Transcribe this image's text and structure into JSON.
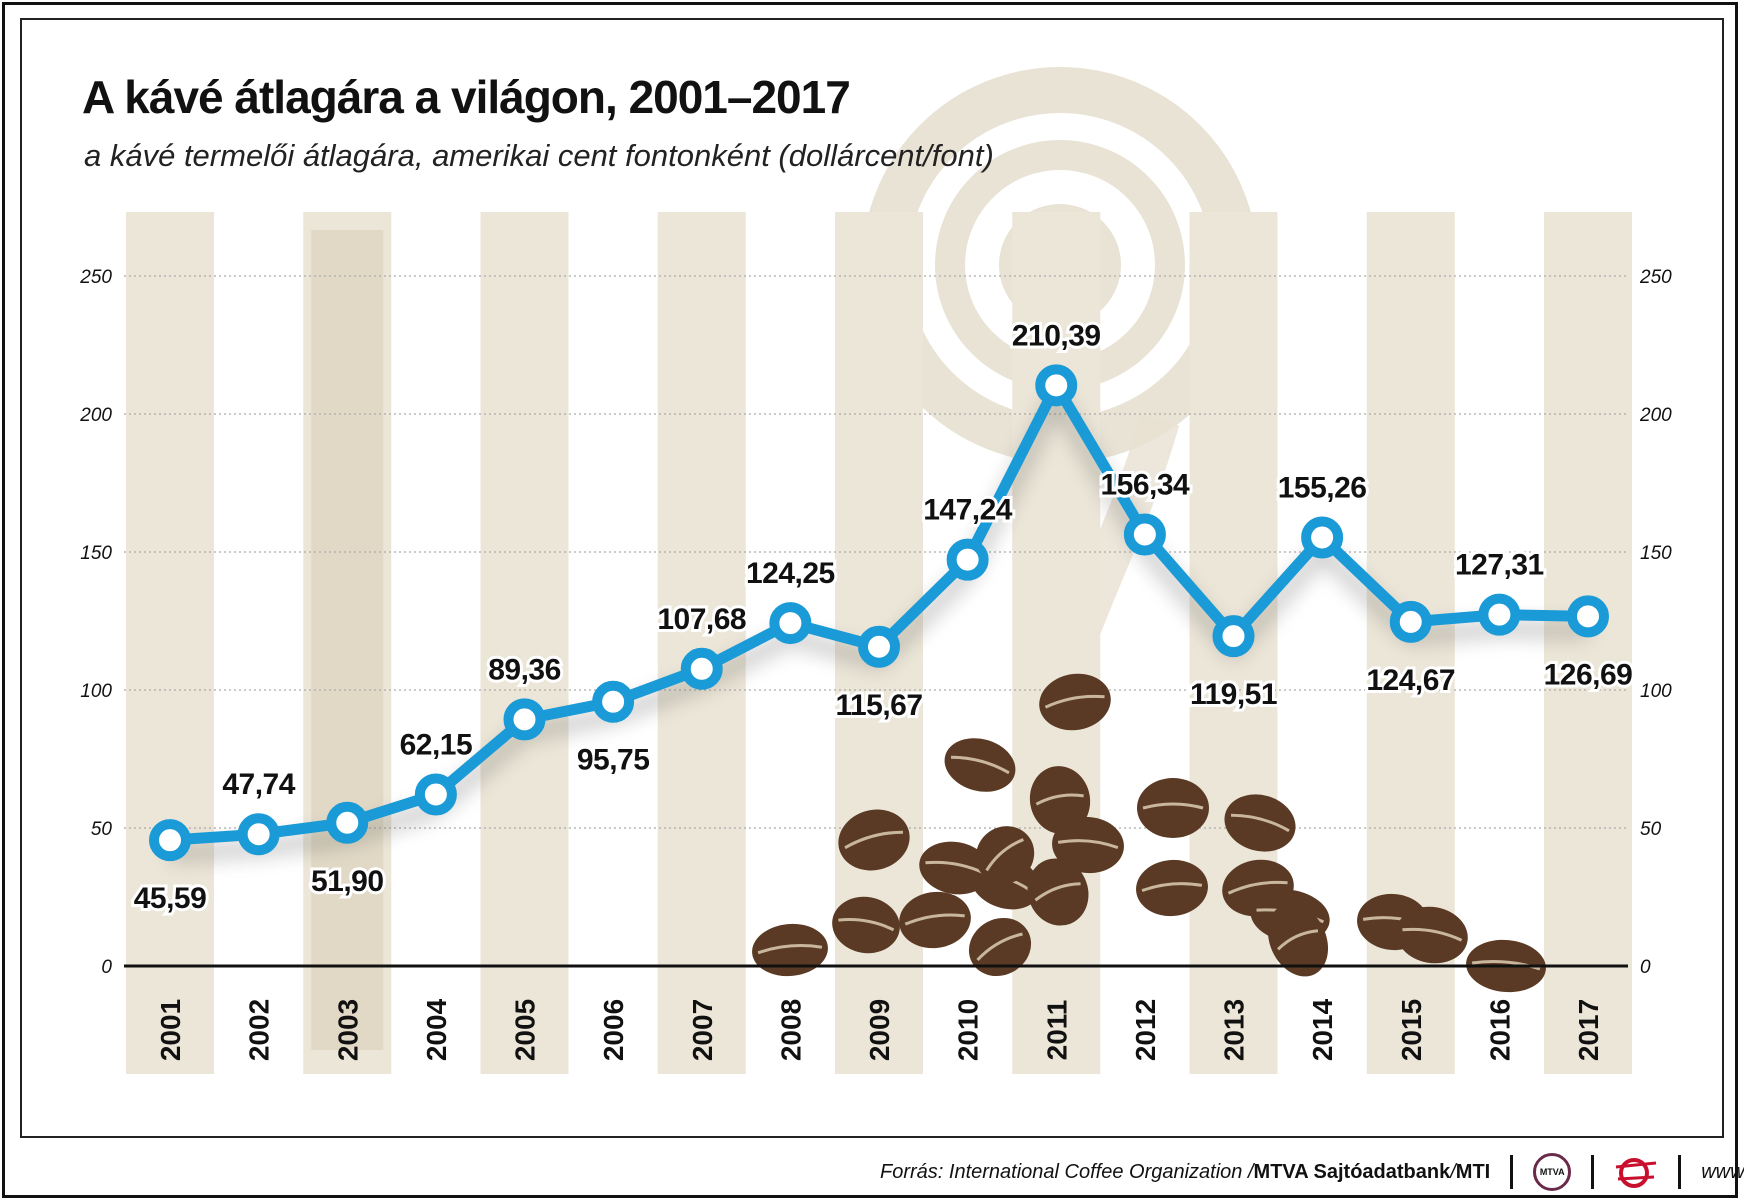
{
  "title": "A kávé átlagára a világon, 2001–2017",
  "subtitle": "a kávé termelői átlagára, amerikai cent fontonként (dollárcent/font)",
  "chart_data": {
    "type": "line",
    "title": "A kávé átlagára a világon, 2001–2017",
    "subtitle": "a kávé termelői átlagára, amerikai cent fontonként (dollárcent/font)",
    "categories": [
      "2001",
      "2002",
      "2003",
      "2004",
      "2005",
      "2006",
      "2007",
      "2008",
      "2009",
      "2010",
      "2011",
      "2012",
      "2013",
      "2014",
      "2015",
      "2016",
      "2017"
    ],
    "values": [
      45.59,
      47.74,
      51.9,
      62.15,
      89.36,
      95.75,
      107.68,
      124.25,
      115.67,
      147.24,
      210.39,
      156.34,
      119.51,
      155.26,
      124.67,
      127.31,
      126.69
    ],
    "value_labels": [
      "45,59",
      "47,74",
      "51,90",
      "62,15",
      "89,36",
      "95,75",
      "107,68",
      "124,25",
      "115,67",
      "147,24",
      "210,39",
      "156,34",
      "119,51",
      "155,26",
      "124,67",
      "127,31",
      "126,69"
    ],
    "label_position": [
      "below",
      "above",
      "below",
      "above",
      "above",
      "below",
      "above",
      "above",
      "below",
      "above",
      "above",
      "above",
      "below",
      "above",
      "below",
      "above",
      "below"
    ],
    "yticks": [
      0,
      50,
      100,
      150,
      200,
      250
    ],
    "ylim": [
      0,
      250
    ],
    "grid": true,
    "line_color": "#1a9ad6",
    "stripe_color": "#ece6d8",
    "axes_both_sides": true
  },
  "footer": {
    "source_label": "Forrás: International Coffee Organization / ",
    "agency": "MTVA Sajtóadatbank",
    "slash": " / ",
    "mti": "MTI",
    "logo1_text": "MTVA",
    "url": "www.mti.hu"
  }
}
